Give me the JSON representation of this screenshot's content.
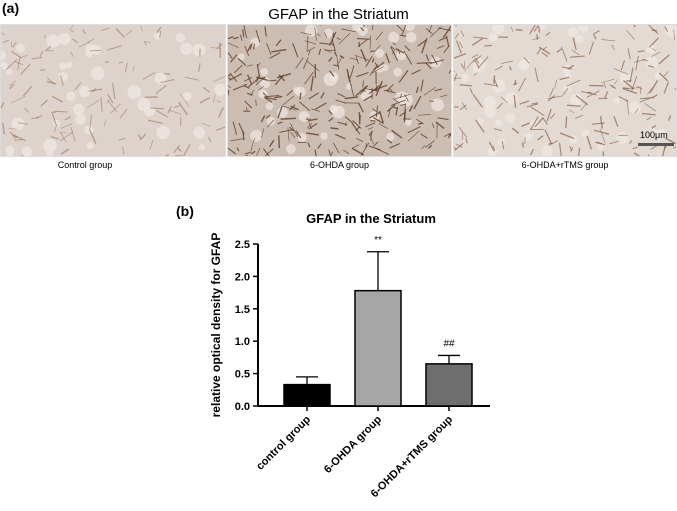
{
  "panel_a": {
    "label": "(a)",
    "title": "GFAP in the Striatum",
    "images": [
      {
        "caption": "Control group",
        "stain_density": 0.25,
        "tissue_color": "#ddd3cc",
        "stain_color": "#8a5a3a"
      },
      {
        "caption": "6-OHDA group",
        "stain_density": 0.9,
        "tissue_color": "#cbbdb2",
        "stain_color": "#5e3a22"
      },
      {
        "caption": "6-OHDA+rTMS group",
        "stain_density": 0.5,
        "tissue_color": "#e3dad3",
        "stain_color": "#7a4c30"
      }
    ],
    "scale_bar_label": "100μm"
  },
  "panel_b": {
    "label": "(b)"
  },
  "chart_data": {
    "type": "bar",
    "title": "GFAP in the Striatum",
    "ylabel": "relative optical density for GFAP",
    "xlabel": "",
    "categories": [
      "control group",
      "6-OHDA group",
      "6-OHDA+rTMS group"
    ],
    "values": [
      0.33,
      1.78,
      0.65
    ],
    "errors": [
      0.12,
      0.6,
      0.13
    ],
    "annotations": [
      "",
      "**",
      "##"
    ],
    "bar_colors": [
      "#000000",
      "#a6a6a6",
      "#6e6e6e"
    ],
    "ylim": [
      0,
      2.5
    ],
    "yticks": [
      "0.0",
      "0.5",
      "1.0",
      "1.5",
      "2.0",
      "2.5"
    ],
    "ytick_values": [
      0,
      0.5,
      1.0,
      1.5,
      2.0,
      2.5
    ],
    "grid": false
  }
}
